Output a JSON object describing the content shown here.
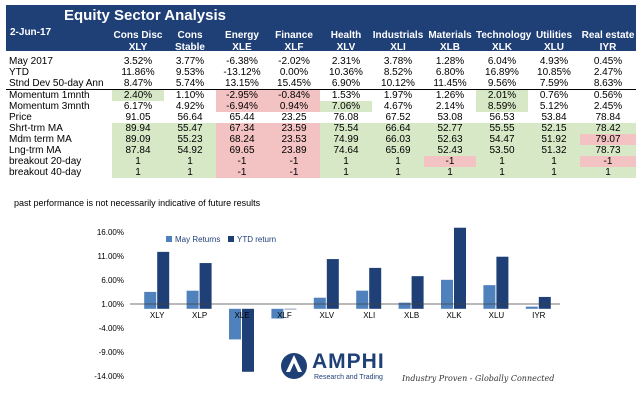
{
  "header": {
    "title": "Equity Sector  Analysis",
    "date": "2-Jun-17"
  },
  "columns": [
    {
      "name": "Cons Disc",
      "ticker": "XLY"
    },
    {
      "name": "Cons Stable",
      "ticker": "XLP"
    },
    {
      "name": "Energy",
      "ticker": "XLE"
    },
    {
      "name": "Finance",
      "ticker": "XLF"
    },
    {
      "name": "Health",
      "ticker": "XLV"
    },
    {
      "name": "Industrials",
      "ticker": "XLI"
    },
    {
      "name": "Materials",
      "ticker": "XLB"
    },
    {
      "name": "Technology",
      "ticker": "XLK"
    },
    {
      "name": "Utilities",
      "ticker": "XLU"
    },
    {
      "name": "Real estate",
      "ticker": "IYR"
    }
  ],
  "rows": [
    {
      "label": "May 2017",
      "values": [
        "3.52%",
        "3.77%",
        "-6.38%",
        "-2.02%",
        "2.31%",
        "3.78%",
        "1.28%",
        "6.04%",
        "4.93%",
        "0.45%"
      ],
      "hl": []
    },
    {
      "label": "YTD",
      "values": [
        "11.86%",
        "9.53%",
        "-13.12%",
        "0.00%",
        "10.36%",
        "8.52%",
        "6.80%",
        "16.89%",
        "10.85%",
        "2.47%"
      ],
      "hl": []
    },
    {
      "label": "Stnd Dev 50-day Ann",
      "values": [
        "8.47%",
        "5.74%",
        "13.15%",
        "15.45%",
        "6.90%",
        "10.12%",
        "11.45%",
        "9.56%",
        "7.59%",
        "8.63%"
      ],
      "hl": []
    },
    {
      "label": "Momentum 1mnth",
      "values": [
        "2.40%",
        "1.10%",
        "-2.95%",
        "-0.84%",
        "1.53%",
        "1.97%",
        "1.26%",
        "2.01%",
        "0.76%",
        "0.56%"
      ],
      "hl": [
        "g",
        "",
        "r",
        "r",
        "",
        "",
        "",
        "g",
        "",
        ""
      ]
    },
    {
      "label": "Momentum 3mnth",
      "values": [
        "6.17%",
        "4.92%",
        "-6.94%",
        "0.94%",
        "7.06%",
        "4.67%",
        "2.14%",
        "8.59%",
        "5.12%",
        "2.45%"
      ],
      "hl": [
        "",
        "",
        "r",
        "r",
        "g",
        "",
        "",
        "g",
        "",
        ""
      ]
    },
    {
      "label": "Price",
      "values": [
        "91.05",
        "56.64",
        "65.44",
        "23.25",
        "76.08",
        "67.52",
        "53.08",
        "56.53",
        "53.84",
        "78.84"
      ],
      "hl": []
    },
    {
      "label": "Shrt-trm MA",
      "values": [
        "89.94",
        "55.47",
        "67.34",
        "23.59",
        "75.54",
        "66.64",
        "52.77",
        "55.55",
        "52.15",
        "78.42"
      ],
      "hl": [
        "g",
        "g",
        "r",
        "r",
        "g",
        "g",
        "g",
        "g",
        "g",
        "g"
      ]
    },
    {
      "label": "Mdm term MA",
      "values": [
        "89.09",
        "55.23",
        "68.24",
        "23.53",
        "74.99",
        "66.03",
        "52.63",
        "54.47",
        "51.92",
        "79.07"
      ],
      "hl": [
        "g",
        "g",
        "r",
        "r",
        "g",
        "g",
        "g",
        "g",
        "g",
        "r"
      ]
    },
    {
      "label": "Lng-trm MA",
      "values": [
        "87.84",
        "54.92",
        "69.65",
        "23.89",
        "74.64",
        "65.69",
        "52.43",
        "53.50",
        "51.32",
        "78.73"
      ],
      "hl": [
        "g",
        "g",
        "r",
        "r",
        "g",
        "g",
        "g",
        "g",
        "g",
        "g"
      ]
    },
    {
      "label": "breakout 20-day",
      "values": [
        "1",
        "1",
        "-1",
        "-1",
        "1",
        "1",
        "-1",
        "1",
        "1",
        "-1"
      ],
      "hl": [
        "g",
        "g",
        "r",
        "r",
        "g",
        "g",
        "r",
        "g",
        "g",
        "r"
      ]
    },
    {
      "label": "breakout 40-day",
      "values": [
        "1",
        "1",
        "-1",
        "-1",
        "1",
        "1",
        "1",
        "1",
        "1",
        "1"
      ],
      "hl": [
        "g",
        "g",
        "r",
        "r",
        "g",
        "g",
        "g",
        "g",
        "g",
        "g"
      ]
    }
  ],
  "disclaimer": "past performance is not necessarily indicative of future results",
  "brand": {
    "name": "AMPHI",
    "sub": "Research and Trading",
    "tagline": "Industry Proven - Globally Connected"
  },
  "colors": {
    "header_bg": "#1f3f77",
    "green": "#d7e8c6",
    "red": "#f3c2c2",
    "may_bar": "#4f81bd",
    "ytd_bar": "#1f3f77"
  },
  "chart_data": {
    "type": "bar",
    "categories": [
      "XLY",
      "XLP",
      "XLE",
      "XLF",
      "XLV",
      "XLI",
      "XLB",
      "XLK",
      "XLU",
      "IYR"
    ],
    "series": [
      {
        "name": "May Returns",
        "values": [
          3.52,
          3.77,
          -6.38,
          -2.02,
          2.31,
          3.78,
          1.28,
          6.04,
          4.93,
          0.45
        ]
      },
      {
        "name": "YTD return",
        "values": [
          11.86,
          9.53,
          -13.12,
          0.0,
          10.36,
          8.52,
          6.8,
          16.89,
          10.85,
          2.47
        ]
      }
    ],
    "yticks": [
      "16.00%",
      "11.00%",
      "6.00%",
      "1.00%",
      "-4.00%",
      "-9.00%",
      "-14.00%"
    ],
    "ylim": [
      -14,
      16
    ],
    "legend": "top-left",
    "grid": false
  }
}
